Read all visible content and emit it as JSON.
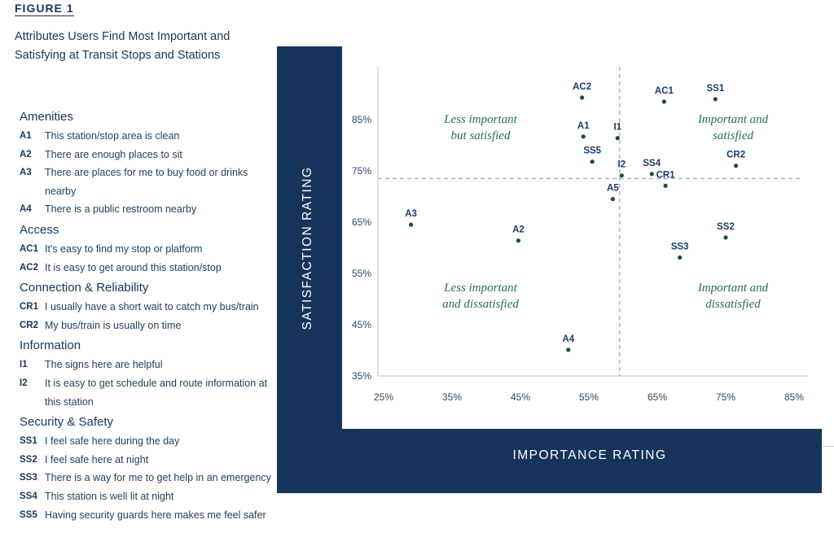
{
  "figure": {
    "label": "FIGURE 1",
    "title": "Attributes Users Find Most Important and Satisfying at Transit Stops and Stations"
  },
  "legend": [
    {
      "heading": "Amenities",
      "items": [
        {
          "code": "A1",
          "text": "This station/stop area is clean"
        },
        {
          "code": "A2",
          "text": "There are enough places to sit"
        },
        {
          "code": "A3",
          "text": "There are places for me to buy food or drinks nearby"
        },
        {
          "code": "A4",
          "text": "There is a public restroom nearby"
        }
      ]
    },
    {
      "heading": "Access",
      "items": [
        {
          "code": "AC1",
          "text": "It's easy to find my stop or platform"
        },
        {
          "code": "AC2",
          "text": "It is easy to get around this station/stop"
        }
      ]
    },
    {
      "heading": "Connection & Reliability",
      "items": [
        {
          "code": "CR1",
          "text": "I usually have a short wait to catch my bus/train"
        },
        {
          "code": "CR2",
          "text": "My bus/train is usually on time"
        }
      ]
    },
    {
      "heading": "Information",
      "items": [
        {
          "code": "I1",
          "text": "The signs here are helpful"
        },
        {
          "code": "I2",
          "text": "It is easy to get schedule and route information at this station"
        }
      ]
    },
    {
      "heading": "Security & Safety",
      "items": [
        {
          "code": "SS1",
          "text": "I feel safe here during the day"
        },
        {
          "code": "SS2",
          "text": "I feel safe here at night"
        },
        {
          "code": "SS3",
          "text": "There is a way for me to get help in an emergency"
        },
        {
          "code": "SS4",
          "text": "This station is well lit at night"
        },
        {
          "code": "SS5",
          "text": "Having security guards here makes me feel safer"
        }
      ]
    }
  ],
  "colors": {
    "frame": "#16335a",
    "points": "#1b4d3e",
    "labels": "#1b3c66",
    "quadrant_text": "#2e6a55",
    "reference_lines": "#9fb4c4"
  },
  "chart_data": {
    "type": "scatter",
    "xlabel": "IMPORTANCE RATING",
    "ylabel": "SATISFACTION RATING",
    "xlim": [
      25,
      85
    ],
    "ylim": [
      35,
      93
    ],
    "xticks": [
      25,
      35,
      45,
      55,
      65,
      75,
      85
    ],
    "xtick_labels": [
      "25%",
      "35%",
      "45%",
      "55%",
      "65%",
      "75%",
      "85%"
    ],
    "yticks": [
      35,
      45,
      55,
      65,
      75,
      85
    ],
    "ytick_labels": [
      "35%",
      "45%",
      "55%",
      "65%",
      "75%",
      "85%"
    ],
    "grid": false,
    "reference_lines": {
      "x": 59.5,
      "y": 73.5
    },
    "quadrant_labels": [
      {
        "position": "top-left",
        "lines": [
          "Less important",
          "but satisfied"
        ]
      },
      {
        "position": "top-right",
        "lines": [
          "Important and",
          "satisfied"
        ]
      },
      {
        "position": "bottom-left",
        "lines": [
          "Less important",
          "and dissatisfied"
        ]
      },
      {
        "position": "bottom-right",
        "lines": [
          "Important and",
          "dissatisfied"
        ]
      }
    ],
    "points": [
      {
        "label": "AC2",
        "x": 54,
        "y": 89.3
      },
      {
        "label": "AC1",
        "x": 66,
        "y": 88.5
      },
      {
        "label": "SS1",
        "x": 73.5,
        "y": 89.0
      },
      {
        "label": "A1",
        "x": 54.2,
        "y": 81.7
      },
      {
        "label": "I1",
        "x": 59.2,
        "y": 81.4
      },
      {
        "label": "SS5",
        "x": 55.5,
        "y": 76.8
      },
      {
        "label": "CR2",
        "x": 76.5,
        "y": 76.0
      },
      {
        "label": "SS4",
        "x": 64.2,
        "y": 74.4
      },
      {
        "label": "I2",
        "x": 59.8,
        "y": 74.1
      },
      {
        "label": "CR1",
        "x": 66.2,
        "y": 72.1
      },
      {
        "label": "A5",
        "x": 58.5,
        "y": 69.5
      },
      {
        "label": "A3",
        "x": 29,
        "y": 64.5
      },
      {
        "label": "A2",
        "x": 44.7,
        "y": 61.4
      },
      {
        "label": "SS2",
        "x": 75,
        "y": 62.0
      },
      {
        "label": "SS3",
        "x": 68.3,
        "y": 58.1
      },
      {
        "label": "A4",
        "x": 52,
        "y": 40.1
      }
    ]
  }
}
